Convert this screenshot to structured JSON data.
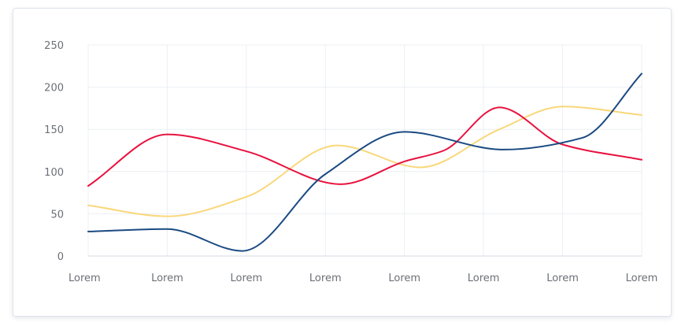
{
  "chart_data": {
    "type": "line",
    "title": "",
    "xlabel": "",
    "ylabel": "",
    "categories": [
      "Lorem",
      "Lorem",
      "Lorem",
      "Lorem",
      "Lorem",
      "Lorem",
      "Lorem",
      "Lorem"
    ],
    "ylim": [
      0,
      250
    ],
    "yticks": [
      0,
      50,
      100,
      150,
      200,
      250
    ],
    "grid": true,
    "curve": "smooth",
    "series": [
      {
        "color": "#1a4a82",
        "points": [
          [
            0,
            29
          ],
          [
            1,
            32
          ],
          [
            1.95,
            6
          ],
          [
            3,
            97
          ],
          [
            4,
            147
          ],
          [
            5.25,
            126
          ],
          [
            6.25,
            140
          ],
          [
            7,
            216
          ]
        ]
      },
      {
        "color": "#e8123f",
        "points": [
          [
            0,
            83
          ],
          [
            1,
            144
          ],
          [
            2,
            124
          ],
          [
            3.2,
            85
          ],
          [
            4,
            112
          ],
          [
            4.5,
            125
          ],
          [
            5.2,
            176
          ],
          [
            6,
            132
          ],
          [
            7,
            114
          ]
        ]
      },
      {
        "color": "#f9d77a",
        "points": [
          [
            0,
            60
          ],
          [
            1,
            47
          ],
          [
            2,
            70
          ],
          [
            3.15,
            131
          ],
          [
            4.2,
            105
          ],
          [
            5.2,
            150
          ],
          [
            6,
            177
          ],
          [
            7,
            167
          ]
        ]
      }
    ],
    "colors": {
      "grid": "#eceff3",
      "axis": "#d6dae0",
      "tick_label": "#6b6f76",
      "card_border": "#dfe3ea"
    }
  }
}
